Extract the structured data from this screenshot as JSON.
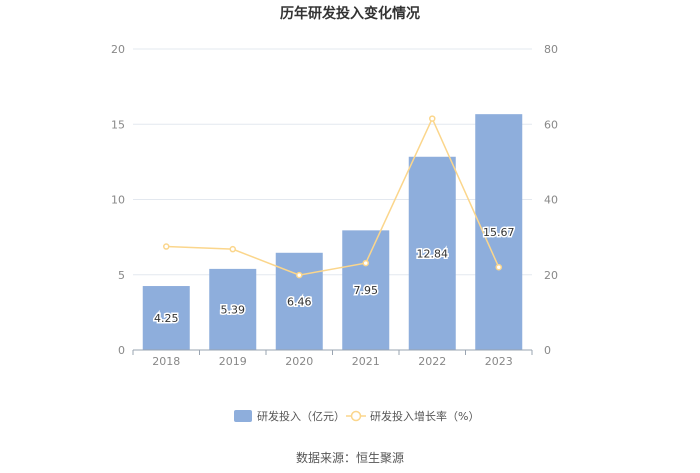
{
  "chart_data": {
    "type": "bar",
    "title": "历年研发投入变化情况",
    "categories": [
      "2018",
      "2019",
      "2020",
      "2021",
      "2022",
      "2023"
    ],
    "series": [
      {
        "name": "研发投入（亿元）",
        "type": "bar",
        "axis": "left",
        "values": [
          4.25,
          5.39,
          6.46,
          7.95,
          12.84,
          15.67
        ],
        "data_labels": [
          "4.25",
          "5.39",
          "6.46",
          "7.95",
          "12.84",
          "15.67"
        ],
        "color": "#8eaedc"
      },
      {
        "name": "研发投入增长率（%）",
        "type": "line",
        "axis": "right",
        "values": [
          27.5,
          26.8,
          19.9,
          23.1,
          61.5,
          22.0
        ],
        "color": "#fbd68c"
      }
    ],
    "y_left": {
      "min": 0,
      "max": 20,
      "ticks": [
        "0",
        "5",
        "10",
        "15",
        "20"
      ]
    },
    "y_right": {
      "min": 0,
      "max": 80,
      "ticks": [
        "0",
        "20",
        "40",
        "60",
        "80"
      ]
    },
    "grid": true,
    "legend": "bottom"
  },
  "source_text": "数据来源：恒生聚源"
}
